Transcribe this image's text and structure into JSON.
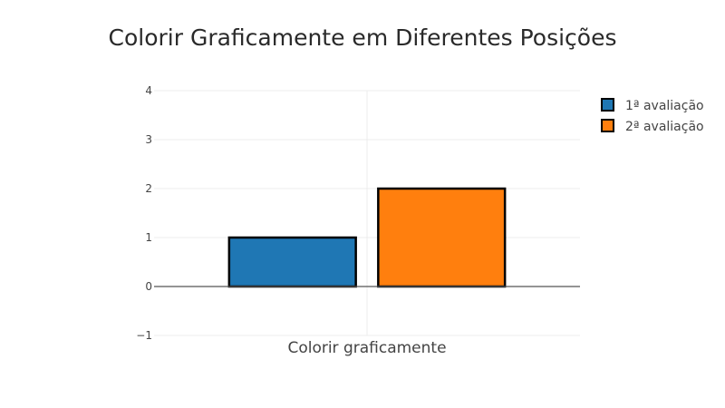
{
  "chart_data": {
    "type": "bar",
    "title": "Colorir Graficamente em Diferentes Posições",
    "categories": [
      "Colorir graficamente"
    ],
    "series": [
      {
        "name": "1ª avaliação",
        "values": [
          1
        ],
        "color": "#1f77b4"
      },
      {
        "name": "2ª avaliação",
        "values": [
          2
        ],
        "color": "#ff7f0e"
      }
    ],
    "bar_outline_color": "#000000",
    "xlabel": "",
    "ylabel": "",
    "ylim": [
      -1,
      4
    ],
    "yticks": [
      "−1",
      "0",
      "1",
      "2",
      "3",
      "4"
    ],
    "grid": true,
    "legend_position": "top-right"
  }
}
